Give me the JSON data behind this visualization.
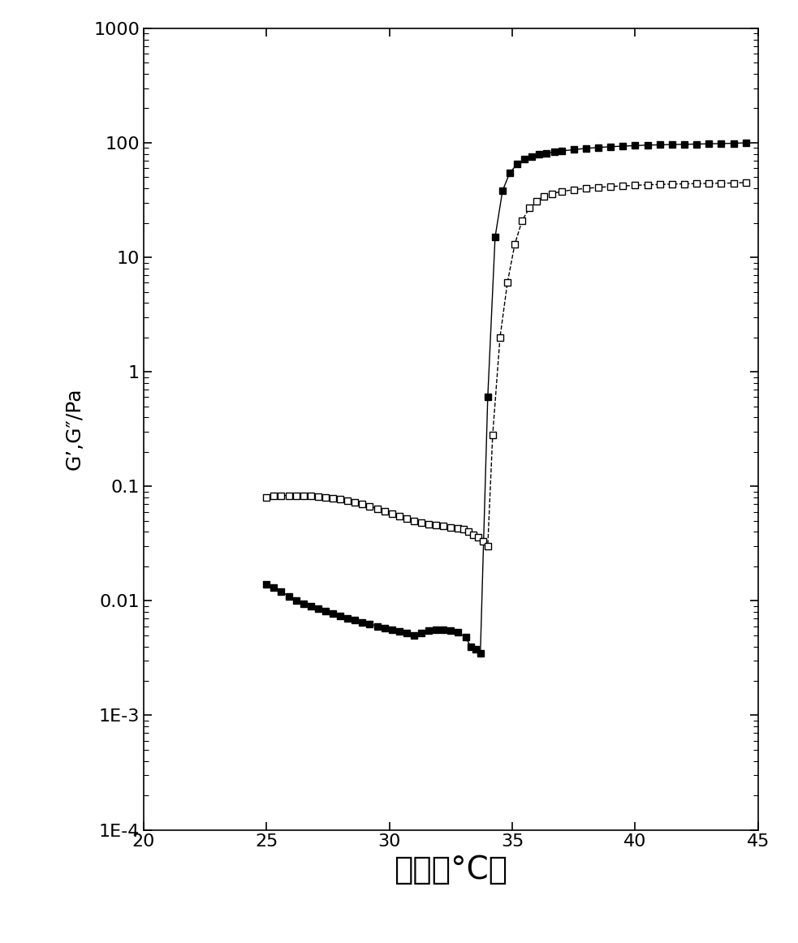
{
  "title": "",
  "xlabel": "温度（°C）",
  "ylabel": "G’,G″/Pa",
  "xlim": [
    20,
    45
  ],
  "ylim": [
    0.0001,
    1000
  ],
  "xticks": [
    20,
    25,
    30,
    35,
    40,
    45
  ],
  "background_color": "#ffffff",
  "xlabel_fontsize": 28,
  "ylabel_fontsize": 18,
  "tick_fontsize": 16,
  "series_filled_x": [
    25.0,
    25.3,
    25.6,
    25.9,
    26.2,
    26.5,
    26.8,
    27.1,
    27.4,
    27.7,
    28.0,
    28.3,
    28.6,
    28.9,
    29.2,
    29.5,
    29.8,
    30.1,
    30.4,
    30.7,
    31.0,
    31.3,
    31.6,
    31.9,
    32.2,
    32.5,
    32.8,
    33.1,
    33.3,
    33.5,
    33.7,
    34.0,
    34.3,
    34.6,
    34.9,
    35.2,
    35.5,
    35.8,
    36.1,
    36.4,
    36.7,
    37.0,
    37.5,
    38.0,
    38.5,
    39.0,
    39.5,
    40.0,
    40.5,
    41.0,
    41.5,
    42.0,
    42.5,
    43.0,
    43.5,
    44.0,
    44.5
  ],
  "series_filled_y": [
    0.014,
    0.013,
    0.012,
    0.011,
    0.01,
    0.0095,
    0.009,
    0.0085,
    0.0082,
    0.0078,
    0.0074,
    0.007,
    0.0068,
    0.0065,
    0.0063,
    0.006,
    0.0058,
    0.0056,
    0.0054,
    0.0052,
    0.005,
    0.0052,
    0.0055,
    0.0056,
    0.0056,
    0.0055,
    0.0053,
    0.0048,
    0.004,
    0.0038,
    0.0035,
    0.6,
    15.0,
    38.0,
    55.0,
    65.0,
    72.0,
    76.0,
    79.0,
    81.0,
    83.0,
    85.0,
    87.0,
    89.5,
    91.0,
    92.5,
    93.5,
    94.5,
    95.5,
    96.0,
    96.5,
    97.0,
    97.5,
    98.0,
    98.5,
    99.0,
    100.0
  ],
  "series_open_x": [
    25.0,
    25.3,
    25.6,
    25.9,
    26.2,
    26.5,
    26.8,
    27.1,
    27.4,
    27.7,
    28.0,
    28.3,
    28.6,
    28.9,
    29.2,
    29.5,
    29.8,
    30.1,
    30.4,
    30.7,
    31.0,
    31.3,
    31.6,
    31.9,
    32.2,
    32.5,
    32.8,
    33.0,
    33.2,
    33.4,
    33.6,
    33.8,
    34.0,
    34.2,
    34.5,
    34.8,
    35.1,
    35.4,
    35.7,
    36.0,
    36.3,
    36.6,
    37.0,
    37.5,
    38.0,
    38.5,
    39.0,
    39.5,
    40.0,
    40.5,
    41.0,
    41.5,
    42.0,
    42.5,
    43.0,
    43.5,
    44.0,
    44.5
  ],
  "series_open_y": [
    0.08,
    0.082,
    0.083,
    0.083,
    0.083,
    0.082,
    0.082,
    0.081,
    0.08,
    0.079,
    0.077,
    0.075,
    0.073,
    0.07,
    0.067,
    0.064,
    0.061,
    0.058,
    0.055,
    0.052,
    0.05,
    0.048,
    0.047,
    0.046,
    0.045,
    0.044,
    0.043,
    0.042,
    0.04,
    0.038,
    0.036,
    0.033,
    0.03,
    0.28,
    2.0,
    6.0,
    13.0,
    21.0,
    27.0,
    31.0,
    34.0,
    36.0,
    37.5,
    39.0,
    40.0,
    40.8,
    41.5,
    42.0,
    42.5,
    43.0,
    43.3,
    43.6,
    43.8,
    44.0,
    44.2,
    44.4,
    44.5,
    45.0
  ],
  "filled_color": "#000000",
  "open_facecolor": "#ffffff",
  "open_edgecolor": "#000000",
  "marker_size": 6,
  "line_width": 1.0
}
